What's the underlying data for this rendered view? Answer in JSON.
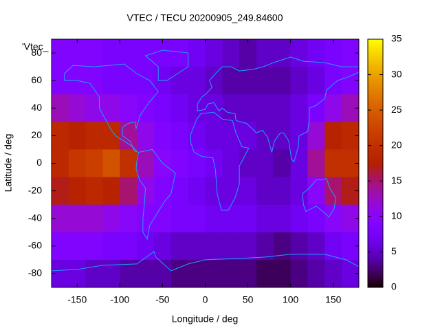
{
  "chart_data": {
    "type": "heatmap",
    "title": "VTEC / TECU 20200905_249.84600",
    "legend_label": "'Vtec_",
    "x_label": "Longitude / deg",
    "y_label": "Latitude / deg",
    "x": [
      -170,
      -150,
      -130,
      -110,
      -90,
      -70,
      -50,
      -30,
      -10,
      10,
      30,
      50,
      70,
      90,
      110,
      130,
      150,
      170
    ],
    "y": [
      80,
      60,
      40,
      20,
      0,
      -20,
      -40,
      -60,
      -80
    ],
    "z": [
      [
        9,
        9,
        9,
        8,
        8,
        8,
        8,
        8,
        7,
        6,
        5,
        4,
        5,
        5,
        6,
        7,
        8,
        9
      ],
      [
        9,
        9,
        9,
        8,
        8,
        8,
        7,
        6,
        6,
        5,
        4,
        4,
        4,
        4,
        5,
        6,
        8,
        9
      ],
      [
        13,
        12,
        11,
        11,
        10,
        9,
        8,
        7,
        6,
        6,
        5,
        5,
        5,
        5,
        6,
        8,
        11,
        13
      ],
      [
        19,
        18,
        19,
        19,
        14,
        11,
        9,
        8,
        7,
        6,
        6,
        6,
        5,
        5,
        6,
        12,
        18,
        19
      ],
      [
        19,
        21,
        22,
        24,
        20,
        13,
        10,
        9,
        8,
        7,
        6,
        5,
        5,
        4,
        6,
        14,
        20,
        20
      ],
      [
        17,
        18,
        19,
        18,
        15,
        11,
        9,
        8,
        7,
        6,
        6,
        6,
        5,
        5,
        6,
        10,
        15,
        17
      ],
      [
        12,
        12,
        12,
        11,
        10,
        9,
        9,
        8,
        8,
        7,
        7,
        7,
        6,
        6,
        7,
        8,
        10,
        11
      ],
      [
        9,
        9,
        9,
        8,
        8,
        7,
        6,
        5,
        5,
        5,
        5,
        5,
        4,
        3,
        4,
        5,
        7,
        8
      ],
      [
        6,
        6,
        5,
        5,
        4,
        4,
        4,
        3,
        3,
        3,
        3,
        3,
        2,
        2,
        3,
        4,
        5,
        6
      ]
    ],
    "xlim": [
      -180,
      180
    ],
    "ylim": [
      -90,
      90
    ],
    "xticks": [
      -150,
      -100,
      -50,
      0,
      50,
      100,
      150
    ],
    "yticks": [
      -80,
      -60,
      -40,
      -20,
      0,
      20,
      40,
      60,
      80
    ],
    "clim": [
      0,
      35
    ],
    "cticks": [
      0,
      5,
      10,
      15,
      20,
      25,
      30,
      35
    ]
  }
}
